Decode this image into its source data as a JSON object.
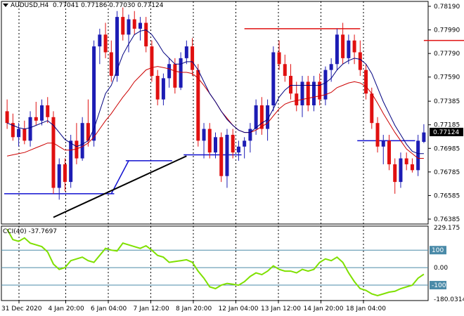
{
  "header": {
    "symbol_tf": "AUDUSD,H4",
    "ohlc": "0.77041 0.77186 0.77030 0.77124"
  },
  "colors": {
    "bull": "#1c1cb4",
    "bear": "#e01010",
    "ma_fast": "#000080",
    "ma_slow": "#cc0000",
    "cci": "#7fe000",
    "level": "#1010d0",
    "trend": "#000000",
    "grid": "#000000",
    "current_box": "#000000"
  },
  "price_axis": {
    "ticks": [
      "0.78190",
      "0.77990",
      "0.77790",
      "0.77590",
      "0.77385",
      "0.77185",
      "0.76985",
      "0.76785",
      "0.76585",
      "0.76385"
    ],
    "current": "0.77124"
  },
  "cci_panel": {
    "label": "CCI(40) -37.7697",
    "ticks": [
      "229.175",
      "100",
      "0.00",
      "-100",
      "-180.0314"
    ],
    "levels": [
      100,
      0,
      -100
    ]
  },
  "time_axis": [
    "31 Dec 2020",
    "4 Jan 20:00",
    "6 Jan 04:00",
    "7 Jan 12:00",
    "8 Jan 20:00",
    "12 Jan 04:00",
    "13 Jan 12:00",
    "14 Jan 20:00",
    "18 Jan 04:00"
  ],
  "chart_data": {
    "type": "candlestick",
    "ylim": [
      0.76385,
      0.7819
    ],
    "candles": [
      [
        0.773,
        0.774,
        0.7715,
        0.772
      ],
      [
        0.772,
        0.7728,
        0.7705,
        0.7708
      ],
      [
        0.7708,
        0.772,
        0.77,
        0.7715
      ],
      [
        0.7715,
        0.7722,
        0.7702,
        0.7705
      ],
      [
        0.7705,
        0.773,
        0.77,
        0.7725
      ],
      [
        0.7725,
        0.7738,
        0.7718,
        0.7722
      ],
      [
        0.7722,
        0.774,
        0.7718,
        0.7735
      ],
      [
        0.7735,
        0.7742,
        0.772,
        0.7725
      ],
      [
        0.7725,
        0.773,
        0.766,
        0.7665
      ],
      [
        0.7665,
        0.769,
        0.7655,
        0.7685
      ],
      [
        0.7685,
        0.769,
        0.7662,
        0.767
      ],
      [
        0.767,
        0.771,
        0.7665,
        0.7705
      ],
      [
        0.7705,
        0.772,
        0.7685,
        0.769
      ],
      [
        0.769,
        0.7725,
        0.7688,
        0.772
      ],
      [
        0.772,
        0.774,
        0.77,
        0.7705
      ],
      [
        0.7705,
        0.779,
        0.77,
        0.7785
      ],
      [
        0.7785,
        0.78,
        0.777,
        0.7795
      ],
      [
        0.7795,
        0.7805,
        0.7775,
        0.778
      ],
      [
        0.778,
        0.779,
        0.7755,
        0.776
      ],
      [
        0.776,
        0.7815,
        0.7755,
        0.781
      ],
      [
        0.781,
        0.7818,
        0.779,
        0.7795
      ],
      [
        0.7795,
        0.7812,
        0.778,
        0.7808
      ],
      [
        0.7808,
        0.7815,
        0.7795,
        0.78
      ],
      [
        0.78,
        0.781,
        0.779,
        0.7805
      ],
      [
        0.7805,
        0.781,
        0.778,
        0.7785
      ],
      [
        0.7785,
        0.779,
        0.7755,
        0.776
      ],
      [
        0.776,
        0.7765,
        0.7735,
        0.774
      ],
      [
        0.774,
        0.7762,
        0.7735,
        0.7758
      ],
      [
        0.7758,
        0.7775,
        0.775,
        0.777
      ],
      [
        0.777,
        0.7775,
        0.7745,
        0.775
      ],
      [
        0.775,
        0.778,
        0.7748,
        0.7775
      ],
      [
        0.7775,
        0.779,
        0.777,
        0.7785
      ],
      [
        0.7785,
        0.7792,
        0.776,
        0.7765
      ],
      [
        0.7765,
        0.777,
        0.77,
        0.7705
      ],
      [
        0.7705,
        0.772,
        0.769,
        0.7715
      ],
      [
        0.7715,
        0.772,
        0.769,
        0.7695
      ],
      [
        0.7695,
        0.7712,
        0.769,
        0.7708
      ],
      [
        0.7708,
        0.7712,
        0.767,
        0.7675
      ],
      [
        0.7675,
        0.7715,
        0.7665,
        0.771
      ],
      [
        0.771,
        0.7715,
        0.769,
        0.7695
      ],
      [
        0.7695,
        0.7705,
        0.7688,
        0.77
      ],
      [
        0.77,
        0.7708,
        0.769,
        0.7705
      ],
      [
        0.7705,
        0.772,
        0.7695,
        0.7715
      ],
      [
        0.7715,
        0.774,
        0.771,
        0.7735
      ],
      [
        0.7735,
        0.7742,
        0.771,
        0.7715
      ],
      [
        0.7715,
        0.774,
        0.7705,
        0.7735
      ],
      [
        0.7735,
        0.7785,
        0.773,
        0.778
      ],
      [
        0.778,
        0.779,
        0.7765,
        0.777
      ],
      [
        0.777,
        0.7778,
        0.7755,
        0.776
      ],
      [
        0.776,
        0.777,
        0.774,
        0.7745
      ],
      [
        0.7745,
        0.7755,
        0.773,
        0.7735
      ],
      [
        0.7735,
        0.776,
        0.7725,
        0.7755
      ],
      [
        0.7755,
        0.776,
        0.773,
        0.7735
      ],
      [
        0.7735,
        0.776,
        0.773,
        0.7755
      ],
      [
        0.7755,
        0.7762,
        0.7735,
        0.774
      ],
      [
        0.774,
        0.7768,
        0.7735,
        0.7765
      ],
      [
        0.7765,
        0.7775,
        0.7755,
        0.777
      ],
      [
        0.777,
        0.78,
        0.7765,
        0.7795
      ],
      [
        0.7795,
        0.7805,
        0.777,
        0.7775
      ],
      [
        0.7775,
        0.7795,
        0.777,
        0.779
      ],
      [
        0.779,
        0.7795,
        0.777,
        0.778
      ],
      [
        0.778,
        0.779,
        0.776,
        0.7765
      ],
      [
        0.7765,
        0.777,
        0.774,
        0.7745
      ],
      [
        0.7745,
        0.775,
        0.7715,
        0.772
      ],
      [
        0.772,
        0.7725,
        0.7695,
        0.77
      ],
      [
        0.77,
        0.771,
        0.7685,
        0.7705
      ],
      [
        0.7705,
        0.771,
        0.768,
        0.7685
      ],
      [
        0.7685,
        0.769,
        0.766,
        0.767
      ],
      [
        0.767,
        0.7695,
        0.7665,
        0.769
      ],
      [
        0.769,
        0.7695,
        0.768,
        0.7685
      ],
      [
        0.7685,
        0.769,
        0.7678,
        0.768
      ],
      [
        0.768,
        0.771,
        0.7675,
        0.7705
      ],
      [
        0.7704,
        0.7719,
        0.7703,
        0.7712
      ]
    ],
    "ma_fast": [
      0.772,
      0.7718,
      0.7716,
      0.7715,
      0.7716,
      0.7718,
      0.772,
      0.7722,
      0.7718,
      0.7712,
      0.7706,
      0.7703,
      0.77,
      0.7702,
      0.7705,
      0.7715,
      0.773,
      0.7745,
      0.7752,
      0.7765,
      0.7778,
      0.7787,
      0.7795,
      0.7798,
      0.7799,
      0.7795,
      0.7788,
      0.778,
      0.7775,
      0.777,
      0.777,
      0.7772,
      0.7772,
      0.7765,
      0.7755,
      0.7745,
      0.7738,
      0.773,
      0.7723,
      0.7718,
      0.7714,
      0.7712,
      0.7712,
      0.7716,
      0.772,
      0.7723,
      0.7732,
      0.7742,
      0.7748,
      0.7752,
      0.7752,
      0.7752,
      0.7752,
      0.7752,
      0.7752,
      0.7754,
      0.7758,
      0.7765,
      0.777,
      0.7773,
      0.7775,
      0.7774,
      0.777,
      0.7762,
      0.775,
      0.7738,
      0.7728,
      0.7718,
      0.771,
      0.7702,
      0.7696,
      0.7694,
      0.7694
    ],
    "ma_slow": [
      0.7692,
      0.7693,
      0.7694,
      0.7695,
      0.7697,
      0.7699,
      0.7701,
      0.7703,
      0.7703,
      0.77,
      0.7697,
      0.7697,
      0.7698,
      0.77,
      0.7703,
      0.7708,
      0.7715,
      0.7722,
      0.7728,
      0.7735,
      0.7742,
      0.7748,
      0.7755,
      0.776,
      0.7765,
      0.7767,
      0.7768,
      0.7767,
      0.7766,
      0.7764,
      0.7763,
      0.7763,
      0.7762,
      0.7758,
      0.7752,
      0.7745,
      0.7738,
      0.773,
      0.7724,
      0.7718,
      0.7714,
      0.7712,
      0.7712,
      0.7714,
      0.7717,
      0.772,
      0.7726,
      0.7732,
      0.7736,
      0.7738,
      0.7739,
      0.774,
      0.7741,
      0.7742,
      0.7743,
      0.7744,
      0.7746,
      0.775,
      0.7752,
      0.7754,
      0.7755,
      0.7754,
      0.7751,
      0.7745,
      0.7737,
      0.7728,
      0.772,
      0.7712,
      0.7705,
      0.7698,
      0.7694,
      0.769,
      0.769
    ],
    "cci": [
      220,
      160,
      150,
      170,
      140,
      130,
      120,
      90,
      20,
      -10,
      0,
      40,
      50,
      60,
      40,
      30,
      70,
      110,
      100,
      95,
      140,
      130,
      120,
      110,
      125,
      100,
      70,
      60,
      30,
      35,
      40,
      45,
      30,
      -20,
      -60,
      -110,
      -120,
      -100,
      -90,
      -95,
      -100,
      -80,
      -50,
      -30,
      -40,
      -20,
      10,
      -10,
      -20,
      -20,
      -30,
      -10,
      -20,
      -10,
      30,
      50,
      40,
      60,
      30,
      -30,
      -80,
      -120,
      -130,
      -150,
      -160,
      -150,
      -140,
      -135,
      -120,
      -110,
      -100,
      -60,
      -37.77
    ],
    "levels_blue": [
      {
        "x0": 0,
        "x1": 18,
        "y": 0.766
      },
      {
        "x0": 21,
        "x1": 28,
        "y": 0.7688
      },
      {
        "x0": 31,
        "x1": 40,
        "y": 0.7693
      },
      {
        "x0": 61,
        "x1": 70,
        "y": 0.7705
      }
    ],
    "levels_red": [
      {
        "x0": 41,
        "x1": 61,
        "y": 0.78
      },
      {
        "x0": 72,
        "x1": 80,
        "y": 0.779
      }
    ],
    "trendline": {
      "x0": 8,
      "y0": 0.764,
      "x1": 31,
      "y1": 0.7692
    }
  }
}
